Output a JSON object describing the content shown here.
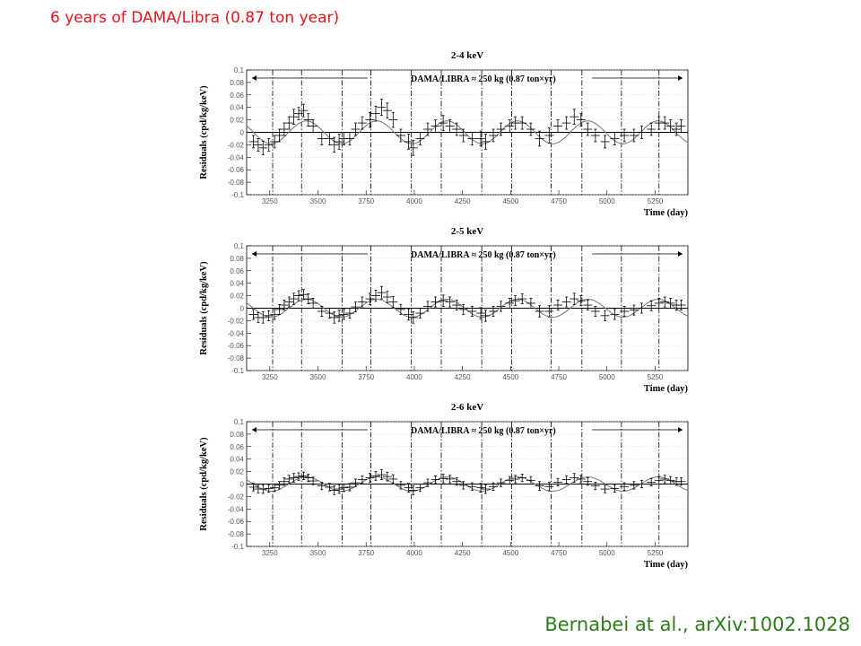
{
  "slide": {
    "title": "6 years of DAMA/Libra (0.87 ton year)",
    "title_color": "#e8141c",
    "citation": "Bernabei at al., arXiv:1002.1028",
    "citation_color": "#2e7d1a"
  },
  "chart_data": [
    {
      "type": "scatter",
      "title": "2-4 keV",
      "legend": "DAMA/LIBRA ≈ 250 kg   (0.87 ton×yr)",
      "xlabel": "Time (day)",
      "ylabel": "Residuals (cpd/kg/keV)",
      "xlim": [
        3130,
        5420
      ],
      "ylim": [
        -0.1,
        0.1
      ],
      "xticks": [
        3250,
        3500,
        3750,
        4000,
        4250,
        4500,
        4750,
        5000,
        5250
      ],
      "xtick_labels": [
        "3250",
        "3500",
        "3750",
        "4000",
        "4250",
        "4500",
        "4750",
        "5000",
        "5250"
      ],
      "yticks": [
        -0.1,
        -0.08,
        -0.06,
        -0.04,
        -0.02,
        0,
        0.02,
        0.04,
        0.06,
        0.08,
        0.1
      ],
      "ytick_labels": [
        "-0.1",
        "-0.08",
        "-0.06",
        "-0.04",
        "-0.02",
        "0",
        "0.02",
        "0.04",
        "0.06",
        "0.08",
        "0.1"
      ],
      "vlines": [
        3265,
        3415,
        3625,
        3775,
        3985,
        4140,
        4350,
        4505,
        4710,
        4870,
        5075,
        5270
      ],
      "model": {
        "amplitude": 0.0183,
        "period": 365.25,
        "phase": 152.5
      },
      "series": [
        {
          "x": [
            3165,
            3190,
            3215,
            3245,
            3275,
            3300,
            3325,
            3350,
            3375,
            3400,
            3425,
            3450,
            3475,
            3520,
            3560,
            3585,
            3610,
            3635,
            3665,
            3695,
            3730,
            3770,
            3800,
            3830,
            3860,
            3890,
            3930,
            3970,
            3995,
            4030,
            4070,
            4110,
            4150,
            4185,
            4220,
            4255,
            4300,
            4345,
            4370,
            4410,
            4450,
            4495,
            4525,
            4560,
            4605,
            4650,
            4700,
            4745,
            4790,
            4830,
            4865,
            4900,
            4940,
            4990,
            5040,
            5090,
            5140,
            5180,
            5230,
            5270,
            5300,
            5330,
            5360,
            5385
          ],
          "y": [
            -0.015,
            -0.02,
            -0.025,
            -0.02,
            -0.015,
            -0.005,
            0.005,
            0.015,
            0.025,
            0.03,
            0.035,
            0.02,
            0.01,
            -0.01,
            -0.01,
            -0.02,
            -0.015,
            -0.01,
            -0.01,
            0.005,
            0.015,
            0.02,
            0.03,
            0.04,
            0.035,
            0.02,
            -0.005,
            -0.015,
            -0.025,
            -0.01,
            0.005,
            0.01,
            0.015,
            0.01,
            0.005,
            -0.005,
            -0.01,
            -0.01,
            -0.015,
            -0.005,
            0.005,
            0.01,
            0.015,
            0.015,
            0.005,
            -0.01,
            -0.005,
            0.01,
            0.015,
            0.025,
            0.02,
            0.005,
            -0.005,
            -0.015,
            -0.01,
            -0.005,
            -0.005,
            0.0,
            0.005,
            0.015,
            0.015,
            0.01,
            0.005,
            0.01
          ],
          "yerr": [
            0.01,
            0.01,
            0.011,
            0.01,
            0.01,
            0.01,
            0.01,
            0.01,
            0.012,
            0.01,
            0.01,
            0.01,
            0.01,
            0.01,
            0.01,
            0.012,
            0.012,
            0.01,
            0.01,
            0.01,
            0.01,
            0.012,
            0.012,
            0.013,
            0.012,
            0.012,
            0.01,
            0.012,
            0.012,
            0.01,
            0.01,
            0.01,
            0.012,
            0.01,
            0.01,
            0.01,
            0.01,
            0.012,
            0.012,
            0.01,
            0.01,
            0.01,
            0.01,
            0.01,
            0.01,
            0.012,
            0.012,
            0.01,
            0.01,
            0.012,
            0.01,
            0.01,
            0.01,
            0.01,
            0.01,
            0.01,
            0.01,
            0.01,
            0.01,
            0.01,
            0.01,
            0.01,
            0.01,
            0.01
          ]
        }
      ]
    },
    {
      "type": "scatter",
      "title": "2-5 keV",
      "legend": "DAMA/LIBRA ≈ 250 kg   (0.87 ton×yr)",
      "xlabel": "Time (day)",
      "ylabel": "Residuals (cpd/kg/keV)",
      "xlim": [
        3130,
        5420
      ],
      "ylim": [
        -0.1,
        0.1
      ],
      "xticks": [
        3250,
        3500,
        3750,
        4000,
        4250,
        4500,
        4750,
        5000,
        5250
      ],
      "xtick_labels": [
        "3250",
        "3500",
        "3750",
        "4000",
        "4250",
        "4500",
        "4750",
        "5000",
        "5250"
      ],
      "yticks": [
        -0.1,
        -0.08,
        -0.06,
        -0.04,
        -0.02,
        0,
        0.02,
        0.04,
        0.06,
        0.08,
        0.1
      ],
      "ytick_labels": [
        "-0.1",
        "-0.08",
        "-0.06",
        "-0.04",
        "-0.02",
        "0",
        "0.02",
        "0.04",
        "0.06",
        "0.08",
        "0.1"
      ],
      "vlines": [
        3265,
        3415,
        3625,
        3775,
        3985,
        4140,
        4350,
        4505,
        4710,
        4870,
        5075,
        5270
      ],
      "model": {
        "amplitude": 0.0144,
        "period": 365.25,
        "phase": 152.5
      },
      "series": [
        {
          "x": [
            3165,
            3190,
            3215,
            3245,
            3275,
            3300,
            3325,
            3350,
            3375,
            3400,
            3425,
            3450,
            3475,
            3520,
            3560,
            3585,
            3610,
            3635,
            3665,
            3695,
            3730,
            3770,
            3800,
            3830,
            3860,
            3890,
            3930,
            3970,
            3995,
            4030,
            4070,
            4110,
            4150,
            4185,
            4220,
            4255,
            4300,
            4345,
            4370,
            4410,
            4450,
            4495,
            4525,
            4560,
            4605,
            4650,
            4700,
            4745,
            4790,
            4830,
            4865,
            4900,
            4940,
            4990,
            5040,
            5090,
            5140,
            5180,
            5230,
            5270,
            5300,
            5330,
            5360,
            5385
          ],
          "y": [
            -0.01,
            -0.015,
            -0.015,
            -0.012,
            -0.01,
            -0.002,
            0.005,
            0.01,
            0.015,
            0.02,
            0.022,
            0.015,
            0.008,
            -0.005,
            -0.008,
            -0.015,
            -0.012,
            -0.01,
            -0.008,
            0.002,
            0.01,
            0.015,
            0.02,
            0.025,
            0.018,
            0.01,
            -0.002,
            -0.01,
            -0.015,
            -0.008,
            0.003,
            0.01,
            0.012,
            0.01,
            0.005,
            -0.002,
            -0.005,
            -0.008,
            -0.012,
            -0.005,
            0.003,
            0.008,
            0.012,
            0.015,
            0.008,
            -0.005,
            -0.005,
            0.005,
            0.01,
            0.015,
            0.012,
            0.005,
            -0.005,
            -0.012,
            -0.01,
            -0.005,
            -0.003,
            0.0,
            0.004,
            0.008,
            0.01,
            0.008,
            0.005,
            0.005
          ],
          "yerr": [
            0.008,
            0.008,
            0.009,
            0.008,
            0.008,
            0.008,
            0.008,
            0.008,
            0.009,
            0.008,
            0.008,
            0.008,
            0.008,
            0.008,
            0.008,
            0.009,
            0.009,
            0.008,
            0.008,
            0.008,
            0.008,
            0.009,
            0.009,
            0.01,
            0.009,
            0.009,
            0.008,
            0.009,
            0.009,
            0.008,
            0.008,
            0.008,
            0.009,
            0.008,
            0.008,
            0.008,
            0.008,
            0.009,
            0.009,
            0.008,
            0.008,
            0.008,
            0.008,
            0.008,
            0.008,
            0.009,
            0.009,
            0.008,
            0.008,
            0.009,
            0.008,
            0.008,
            0.008,
            0.008,
            0.008,
            0.008,
            0.008,
            0.008,
            0.008,
            0.008,
            0.008,
            0.008,
            0.008,
            0.008
          ]
        }
      ]
    },
    {
      "type": "scatter",
      "title": "2-6 keV",
      "legend": "DAMA/LIBRA ≈ 250 kg   (0.87 ton×yr)",
      "xlabel": "Time (day)",
      "ylabel": "Residuals (cpd/kg/keV)",
      "xlim": [
        3130,
        5420
      ],
      "ylim": [
        -0.1,
        0.1
      ],
      "xticks": [
        3250,
        3500,
        3750,
        4000,
        4250,
        4500,
        4750,
        5000,
        5250
      ],
      "xtick_labels": [
        "3250",
        "3500",
        "3750",
        "4000",
        "4250",
        "4500",
        "4750",
        "5000",
        "5250"
      ],
      "yticks": [
        -0.1,
        -0.08,
        -0.06,
        -0.04,
        -0.02,
        0,
        0.02,
        0.04,
        0.06,
        0.08,
        0.1
      ],
      "ytick_labels": [
        "-0.1",
        "-0.08",
        "-0.06",
        "-0.04",
        "-0.02",
        "0",
        "0.02",
        "0.04",
        "0.06",
        "0.08",
        "0.1"
      ],
      "vlines": [
        3265,
        3415,
        3625,
        3775,
        3985,
        4140,
        4350,
        4505,
        4710,
        4870,
        5075,
        5270
      ],
      "model": {
        "amplitude": 0.0114,
        "period": 365.25,
        "phase": 152.5
      },
      "series": [
        {
          "x": [
            3165,
            3190,
            3215,
            3245,
            3275,
            3300,
            3325,
            3350,
            3375,
            3400,
            3425,
            3450,
            3475,
            3520,
            3560,
            3585,
            3610,
            3635,
            3665,
            3695,
            3730,
            3770,
            3800,
            3830,
            3860,
            3890,
            3930,
            3970,
            3995,
            4030,
            4070,
            4110,
            4150,
            4185,
            4220,
            4255,
            4300,
            4345,
            4370,
            4410,
            4450,
            4495,
            4525,
            4560,
            4605,
            4650,
            4700,
            4745,
            4790,
            4830,
            4865,
            4900,
            4940,
            4990,
            5040,
            5090,
            5140,
            5180,
            5230,
            5270,
            5300,
            5330,
            5360,
            5385
          ],
          "y": [
            -0.005,
            -0.008,
            -0.008,
            -0.007,
            -0.006,
            -0.002,
            0.004,
            0.008,
            0.01,
            0.012,
            0.013,
            0.01,
            0.005,
            -0.003,
            -0.005,
            -0.01,
            -0.008,
            -0.006,
            -0.005,
            0.002,
            0.007,
            0.01,
            0.013,
            0.015,
            0.012,
            0.008,
            -0.002,
            -0.006,
            -0.01,
            -0.006,
            0.002,
            0.007,
            0.009,
            0.008,
            0.004,
            -0.002,
            -0.004,
            -0.006,
            -0.008,
            -0.004,
            0.002,
            0.006,
            0.008,
            0.01,
            0.006,
            -0.003,
            -0.004,
            0.003,
            0.007,
            0.01,
            0.008,
            0.004,
            -0.003,
            -0.008,
            -0.007,
            -0.004,
            -0.002,
            0.0,
            0.003,
            0.006,
            0.008,
            0.006,
            0.004,
            0.004
          ],
          "yerr": [
            0.006,
            0.006,
            0.007,
            0.006,
            0.006,
            0.006,
            0.006,
            0.006,
            0.007,
            0.006,
            0.006,
            0.006,
            0.006,
            0.006,
            0.006,
            0.007,
            0.007,
            0.006,
            0.006,
            0.006,
            0.006,
            0.007,
            0.007,
            0.008,
            0.007,
            0.007,
            0.006,
            0.007,
            0.007,
            0.006,
            0.006,
            0.006,
            0.007,
            0.006,
            0.006,
            0.006,
            0.006,
            0.007,
            0.007,
            0.006,
            0.006,
            0.006,
            0.006,
            0.006,
            0.006,
            0.007,
            0.007,
            0.006,
            0.006,
            0.007,
            0.006,
            0.006,
            0.006,
            0.006,
            0.006,
            0.006,
            0.006,
            0.006,
            0.006,
            0.006,
            0.006,
            0.006,
            0.006,
            0.006
          ]
        }
      ]
    }
  ]
}
